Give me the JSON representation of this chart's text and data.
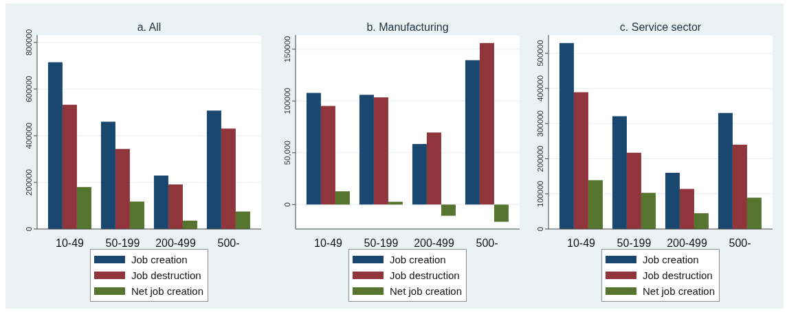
{
  "chart_data": [
    {
      "type": "bar",
      "title": "a. All",
      "categories": [
        "10-49",
        "50-199",
        "200-499",
        "500-"
      ],
      "series": [
        {
          "name": "Job creation",
          "color": "#1a476f",
          "values": [
            715000,
            460000,
            229000,
            508000
          ]
        },
        {
          "name": "Job destruction",
          "color": "#90353b",
          "values": [
            533000,
            343000,
            191000,
            431000
          ]
        },
        {
          "name": "Net job creation",
          "color": "#55752f",
          "values": [
            180000,
            118000,
            36000,
            75000
          ]
        }
      ],
      "ylim": [
        0,
        832000
      ],
      "yticks": [
        0,
        200000,
        400000,
        600000,
        800000
      ],
      "grid": "y",
      "legend": "bottom"
    },
    {
      "type": "bar",
      "title": "b. Manufacturing",
      "categories": [
        "10-49",
        "50-199",
        "200-499",
        "500-"
      ],
      "series": [
        {
          "name": "Job creation",
          "color": "#1a476f",
          "values": [
            107800,
            106000,
            58500,
            139400
          ]
        },
        {
          "name": "Job destruction",
          "color": "#90353b",
          "values": [
            95200,
            103400,
            69600,
            156000
          ]
        },
        {
          "name": "Net job creation",
          "color": "#55752f",
          "values": [
            12800,
            2700,
            -10800,
            -16600
          ]
        }
      ],
      "ylim": [
        -23600,
        163700
      ],
      "yticks": [
        0,
        {
          "value": 50000,
          "label": "50,000"
        },
        100000,
        150000
      ],
      "grid": "y",
      "legend": "bottom"
    },
    {
      "type": "bar",
      "title": "c. Service sector",
      "categories": [
        "10-49",
        "50-199",
        "200-499",
        "500-"
      ],
      "series": [
        {
          "name": "Job creation",
          "color": "#1a476f",
          "values": [
            529000,
            321000,
            160000,
            330000
          ]
        },
        {
          "name": "Job destruction",
          "color": "#90353b",
          "values": [
            389000,
            217000,
            114000,
            240000
          ]
        },
        {
          "name": "Net job creation",
          "color": "#55752f",
          "values": [
            139000,
            103000,
            45000,
            89000
          ]
        }
      ],
      "ylim": [
        0,
        552000
      ],
      "yticks": [
        0,
        100000,
        200000,
        300000,
        400000,
        500000
      ],
      "grid": "y",
      "legend": "bottom"
    }
  ]
}
